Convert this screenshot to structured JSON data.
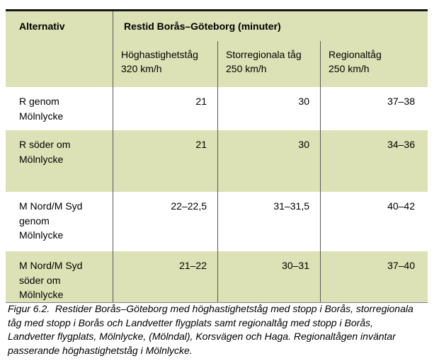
{
  "colors": {
    "shaded_row_bg": "#dce2b5",
    "column_divider": "#58585a",
    "top_rule": "#151515",
    "bottom_rule": "#808080"
  },
  "table": {
    "corner_header": "Alternativ",
    "group_header": "Restid Borås–Göteborg (minuter)",
    "sub_headers": [
      "Höghastighetståg\n320 km/h",
      "Storregionala tåg\n250 km/h",
      "Regionaltåg\n250 km/h"
    ],
    "rows": [
      {
        "label": "R genom\nMölnlycke",
        "values": [
          "21",
          "30",
          "37–38"
        ]
      },
      {
        "label": "R söder om\nMölnlycke",
        "values": [
          "21",
          "30",
          "34–36"
        ]
      },
      {
        "label": "M Nord/M Syd\ngenom\nMölnlycke",
        "values": [
          "22–22,5",
          "31–31,5",
          "40–42"
        ]
      },
      {
        "label": "M Nord/M Syd\nsöder om\nMölnlycke",
        "values": [
          "21–22",
          "30–31",
          "37–40"
        ]
      }
    ]
  },
  "caption": "Figur 6.2.  Restider Borås–Göteborg med höghastighetståg med stopp i Borås, storregionala\ntåg med stopp i Borås och Landvetter flygplats samt regionaltåg med stopp i Borås,\nLandvetter flygplats, Mölnlycke, (Mölndal), Korsvägen och Haga. Regionaltågen inväntar\npasserande höghastighetståg i Mölnlycke."
}
